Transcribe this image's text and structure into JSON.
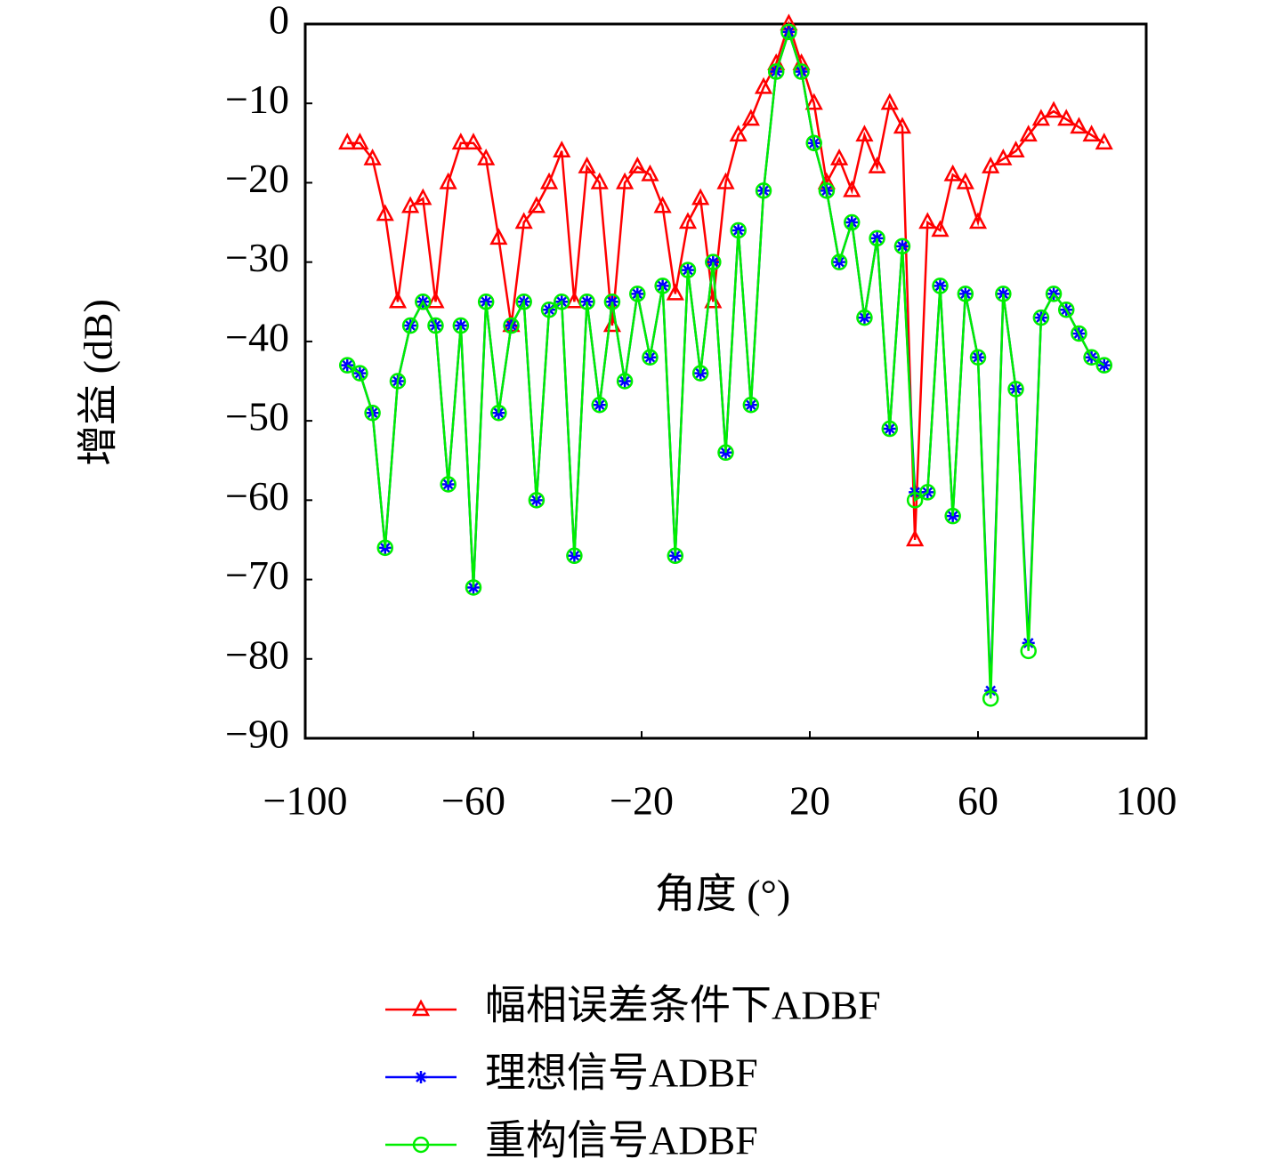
{
  "chart_data": {
    "type": "line",
    "xlabel": "角度 (°)",
    "ylabel": "增益 (dB)",
    "x": [
      -90,
      -87,
      -84,
      -81,
      -78,
      -75,
      -72,
      -69,
      -66,
      -63,
      -60,
      -57,
      -54,
      -51,
      -48,
      -45,
      -42,
      -39,
      -36,
      -33,
      -30,
      -27,
      -24,
      -21,
      -18,
      -15,
      -12,
      -9,
      -6,
      -3,
      0,
      3,
      6,
      9,
      12,
      15,
      18,
      21,
      24,
      27,
      30,
      33,
      36,
      39,
      42,
      45,
      48,
      51,
      54,
      57,
      60,
      63,
      66,
      69,
      72,
      75,
      78,
      81,
      84,
      87,
      90
    ],
    "series": [
      {
        "name": "幅相误差条件下ADBF",
        "color": "#ff0000",
        "marker": "triangle",
        "values": [
          -15,
          -15,
          -17,
          -24,
          -35,
          -23,
          -22,
          -35,
          -20,
          -15,
          -15,
          -17,
          -27,
          -38,
          -25,
          -23,
          -20,
          -16,
          -35,
          -18,
          -20,
          -38,
          -20,
          -18,
          -19,
          -23,
          -34,
          -25,
          -22,
          -35,
          -20,
          -14,
          -12,
          -8,
          -5,
          0,
          -5,
          -10,
          -20,
          -17,
          -21,
          -14,
          -18,
          -10,
          -13,
          -65,
          -25,
          -26,
          -19,
          -20,
          -25,
          -18,
          -17,
          -16,
          -14,
          -12,
          -11,
          -12,
          -13,
          -14,
          -15
        ]
      },
      {
        "name": "理想信号ADBF",
        "color": "#0000ff",
        "marker": "asterisk",
        "values": [
          -43,
          -44,
          -49,
          -66,
          -45,
          -38,
          -35,
          -38,
          -58,
          -38,
          -71,
          -35,
          -49,
          -38,
          -35,
          -60,
          -36,
          -35,
          -67,
          -35,
          -48,
          -35,
          -45,
          -34,
          -42,
          -33,
          -67,
          -31,
          -44,
          -30,
          -54,
          -26,
          -48,
          -21,
          -6,
          -1,
          -6,
          -15,
          -21,
          -30,
          -25,
          -37,
          -27,
          -51,
          -28,
          -59,
          -59,
          -33,
          -62,
          -34,
          -42,
          -84,
          -34,
          -46,
          -78,
          -37,
          -34,
          -36,
          -39,
          -42,
          -43
        ]
      },
      {
        "name": "重构信号ADBF",
        "color": "#00ee00",
        "marker": "circle",
        "values": [
          -43,
          -44,
          -49,
          -66,
          -45,
          -38,
          -35,
          -38,
          -58,
          -38,
          -71,
          -35,
          -49,
          -38,
          -35,
          -60,
          -36,
          -35,
          -67,
          -35,
          -48,
          -35,
          -45,
          -34,
          -42,
          -33,
          -67,
          -31,
          -44,
          -30,
          -54,
          -26,
          -48,
          -21,
          -6,
          -1,
          -6,
          -15,
          -21,
          -30,
          -25,
          -37,
          -27,
          -51,
          -28,
          -60,
          -59,
          -33,
          -62,
          -34,
          -42,
          -85,
          -34,
          -46,
          -79,
          -37,
          -34,
          -36,
          -39,
          -42,
          -43
        ]
      }
    ],
    "xlim": [
      -100,
      100
    ],
    "xticks": [
      {
        "value": -100,
        "label": "−100"
      },
      {
        "value": -60,
        "label": "−60"
      },
      {
        "value": -20,
        "label": "−20"
      },
      20,
      60,
      100
    ],
    "ylim": [
      -90,
      0
    ],
    "yticks": [
      {
        "value": -90,
        "label": "−90"
      },
      {
        "value": -80,
        "label": "−80"
      },
      {
        "value": -70,
        "label": "−70"
      },
      {
        "value": -60,
        "label": "−60"
      },
      {
        "value": -50,
        "label": "−50"
      },
      {
        "value": -40,
        "label": "−40"
      },
      {
        "value": -30,
        "label": "−30"
      },
      {
        "value": -20,
        "label": "−20"
      },
      {
        "value": -10,
        "label": "−10"
      },
      0
    ],
    "grid": false,
    "legend": "bottom"
  }
}
